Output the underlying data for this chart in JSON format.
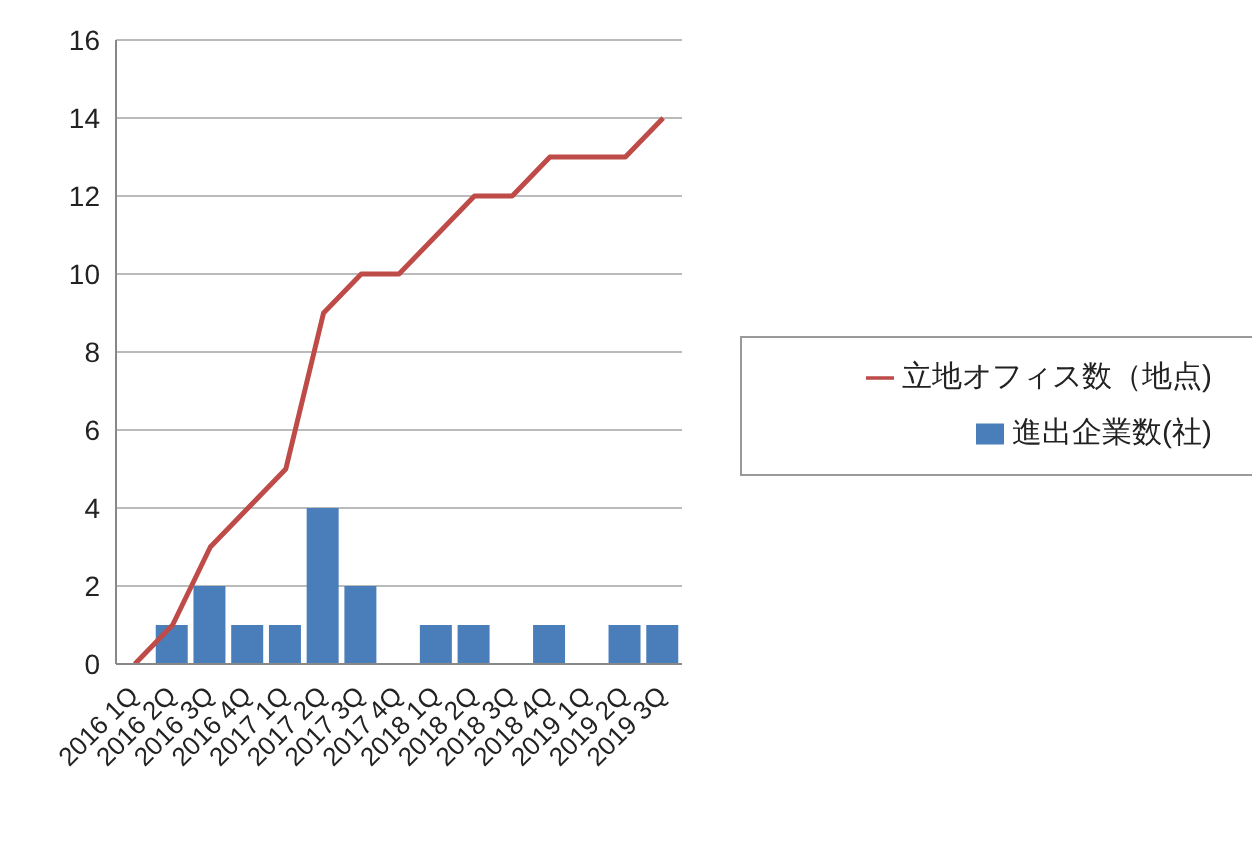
{
  "chart_data": {
    "type": "bar",
    "categories": [
      "2016 1Q",
      "2016 2Q",
      "2016 3Q",
      "2016 4Q",
      "2017 1Q",
      "2017 2Q",
      "2017 3Q",
      "2017 4Q",
      "2018 1Q",
      "2018 2Q",
      "2018 3Q",
      "2018 4Q",
      "2019 1Q",
      "2019 2Q",
      "2019 3Q"
    ],
    "series": [
      {
        "name": "進出企業数(社)",
        "color": "#4a7ebb",
        "values": [
          0,
          1,
          2,
          1,
          1,
          4,
          2,
          0,
          1,
          1,
          0,
          1,
          0,
          1,
          1
        ]
      },
      {
        "name": "立地オフィス数（地点)",
        "type": "line",
        "color": "#be4b48",
        "values": [
          0,
          1,
          3,
          4,
          5,
          9,
          10,
          10,
          11,
          12,
          12,
          13,
          13,
          13,
          14
        ]
      }
    ],
    "ylim": [
      0,
      16
    ],
    "yticks": [
      0,
      2,
      4,
      6,
      8,
      10,
      12,
      14,
      16
    ],
    "grid": "y",
    "legend": "right",
    "marker": "none",
    "line_style": "solid"
  }
}
